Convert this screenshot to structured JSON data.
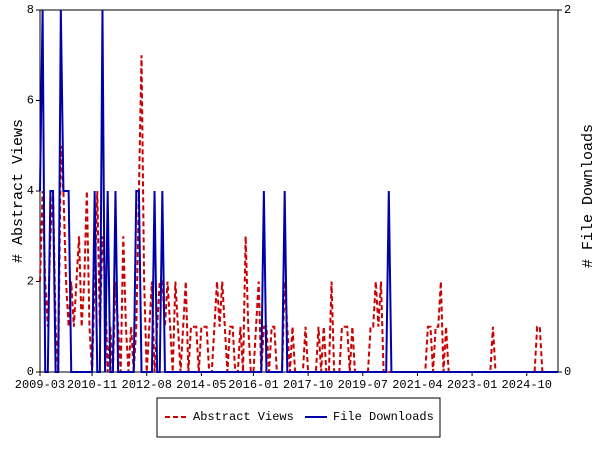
{
  "chart_data": {
    "type": "line",
    "ylabel": "# Abstract Views",
    "y2label": "# File Downloads",
    "ylim": [
      0,
      8
    ],
    "yticks": [
      0,
      2,
      4,
      6,
      8
    ],
    "y2lim": [
      0,
      2
    ],
    "y2ticks": [
      0,
      2
    ],
    "categories": [
      "2009-03",
      null,
      null,
      null,
      null,
      null,
      null,
      null,
      null,
      null,
      null,
      null,
      null,
      null,
      null,
      null,
      null,
      null,
      null,
      null,
      "2010-11",
      null,
      null,
      null,
      null,
      null,
      null,
      null,
      null,
      null,
      null,
      null,
      null,
      null,
      null,
      null,
      null,
      null,
      null,
      null,
      null,
      "2012-08",
      null,
      null,
      null,
      null,
      null,
      null,
      null,
      null,
      null,
      null,
      null,
      null,
      null,
      null,
      null,
      null,
      null,
      null,
      null,
      null,
      "2014-05",
      null,
      null,
      null,
      null,
      null,
      null,
      null,
      null,
      null,
      null,
      null,
      null,
      null,
      null,
      null,
      null,
      null,
      null,
      null,
      "2016-01",
      null,
      null,
      null,
      null,
      null,
      null,
      null,
      null,
      null,
      null,
      null,
      null,
      null,
      null,
      null,
      null,
      null,
      null,
      null,
      null,
      "2017-10",
      null,
      null,
      null,
      null,
      null,
      null,
      null,
      null,
      null,
      null,
      null,
      null,
      null,
      null,
      null,
      null,
      null,
      null,
      null,
      null,
      "2019-07",
      null,
      null,
      null,
      null,
      null,
      null,
      null,
      null,
      null,
      null,
      null,
      null,
      null,
      null,
      null,
      null,
      null,
      null,
      null,
      null,
      "2021-04",
      null,
      null,
      null,
      null,
      null,
      null,
      null,
      null,
      null,
      null,
      null,
      null,
      null,
      null,
      null,
      null,
      null,
      null,
      null,
      null,
      "2023-01",
      null,
      null,
      null,
      null,
      null,
      null,
      null,
      null,
      null,
      null,
      null,
      null,
      null,
      null,
      null,
      null,
      null,
      null,
      null,
      null,
      "2024-10",
      null,
      null,
      null,
      null,
      null,
      null,
      null,
      null,
      null,
      null,
      null,
      null
    ],
    "series": [
      {
        "name": "Abstract Views",
        "color": "#cc0000",
        "dash": true,
        "values": [
          2,
          4,
          2,
          1,
          3,
          4,
          1,
          0,
          5,
          4,
          2,
          1,
          2,
          1,
          2,
          3,
          1,
          2,
          4,
          1,
          0,
          2,
          4,
          1,
          3,
          2,
          0,
          1,
          0,
          2,
          1,
          0,
          3,
          1,
          0,
          1,
          0,
          1,
          4,
          7,
          2,
          0,
          1,
          2,
          0,
          1,
          2,
          2,
          1,
          2,
          1,
          0,
          2,
          1,
          0,
          1,
          2,
          0,
          1,
          1,
          1,
          0,
          1,
          1,
          1,
          0,
          0,
          1,
          2,
          1,
          2,
          1,
          0,
          1,
          1,
          0,
          0,
          1,
          0,
          3,
          1,
          0,
          0,
          1,
          2,
          0,
          1,
          1,
          0,
          1,
          1,
          0,
          0,
          0,
          2,
          1,
          0,
          1,
          0,
          0,
          0,
          0,
          1,
          0,
          0,
          0,
          0,
          1,
          0,
          1,
          0,
          0,
          2,
          0,
          0,
          0,
          1,
          1,
          1,
          0,
          1,
          0,
          0,
          0,
          0,
          0,
          0,
          1,
          1,
          2,
          1,
          2,
          0,
          0,
          0,
          0,
          0,
          0,
          0,
          0,
          0,
          0,
          0,
          0,
          0,
          0,
          0,
          0,
          0,
          1,
          1,
          0,
          1,
          1,
          2,
          0,
          1,
          0,
          0,
          0,
          0,
          0,
          0,
          0,
          0,
          0,
          0,
          0,
          0,
          0,
          0,
          0,
          0,
          0,
          1,
          0,
          0,
          0,
          0,
          0,
          0,
          0,
          0,
          0,
          0,
          0,
          0,
          0,
          0,
          0,
          0,
          1,
          1,
          0,
          0,
          0,
          0,
          0,
          0,
          0
        ]
      },
      {
        "name": "File Downloads",
        "color": "#0000aa",
        "axis": "y2",
        "values": [
          1,
          2,
          0,
          0,
          1,
          1,
          0,
          0,
          2,
          1,
          1,
          1,
          0,
          0,
          0,
          0,
          0,
          0,
          0,
          0,
          0,
          1,
          0,
          0,
          2,
          0,
          1,
          0,
          0,
          1,
          0,
          0,
          0,
          0,
          0,
          0,
          0,
          1,
          1,
          0,
          0,
          0,
          0,
          0,
          1,
          0,
          0,
          1,
          0,
          0,
          0,
          0,
          0,
          0,
          0,
          0,
          0,
          0,
          0,
          0,
          0,
          0,
          0,
          0,
          0,
          0,
          0,
          0,
          0,
          0,
          0,
          0,
          0,
          0,
          0,
          0,
          0,
          0,
          0,
          0,
          0,
          0,
          0,
          0,
          0,
          0,
          1,
          0,
          0,
          0,
          0,
          0,
          0,
          0,
          1,
          0,
          0,
          0,
          0,
          0,
          0,
          0,
          0,
          0,
          0,
          0,
          0,
          0,
          0,
          0,
          0,
          0,
          0,
          0,
          0,
          0,
          0,
          0,
          0,
          0,
          0,
          0,
          0,
          0,
          0,
          0,
          0,
          0,
          0,
          0,
          0,
          0,
          0,
          0,
          1,
          0,
          0,
          0,
          0,
          0,
          0,
          0,
          0,
          0,
          0,
          0,
          0,
          0,
          0,
          0,
          0,
          0,
          0,
          0,
          0,
          0,
          0,
          0,
          0,
          0,
          0,
          0,
          0,
          0,
          0,
          0,
          0,
          0,
          0,
          0,
          0,
          0,
          0,
          0,
          0,
          0,
          0,
          0,
          0,
          0,
          0,
          0,
          0,
          0,
          0,
          0,
          0,
          0,
          0,
          0,
          0,
          0,
          0,
          0,
          0,
          0,
          0,
          0,
          0,
          0
        ]
      }
    ]
  }
}
